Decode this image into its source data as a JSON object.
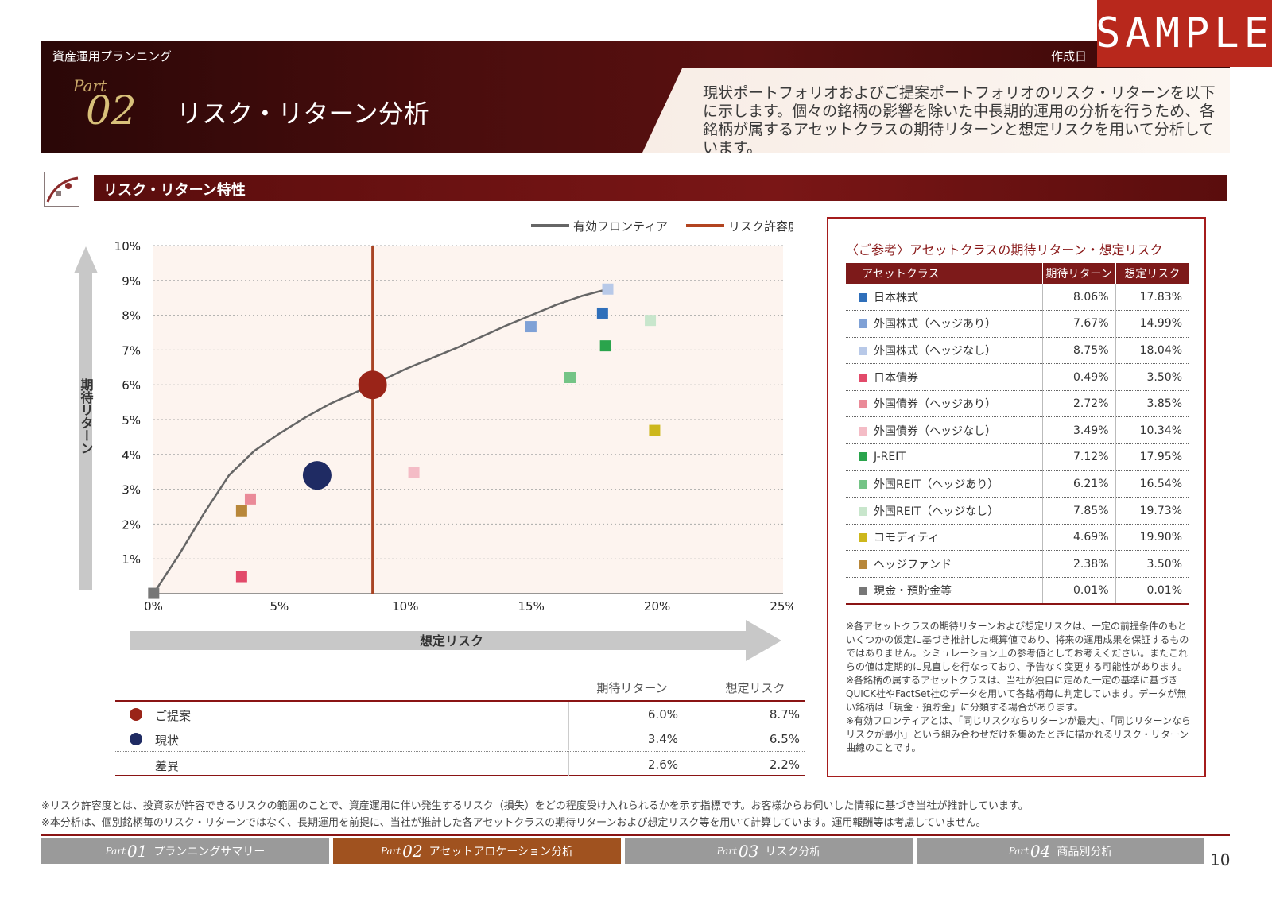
{
  "header": {
    "category": "資産運用プランニング",
    "created_label": "作成日",
    "sample": "SAMPLE",
    "part_word": "Part",
    "part_num": "02",
    "title": "リスク・リターン分析",
    "description": "現状ポートフォリオおよびご提案ポートフォリオのリスク・リターンを以下に示します。個々の銘柄の影響を除いた中長期的運用の分析を行うため、各銘柄が属するアセットクラスの期待リターンと想定リスクを用いて分析しています。"
  },
  "section": {
    "title": "リスク・リターン特性"
  },
  "chart_data": {
    "type": "scatter",
    "xlabel": "想定リスク",
    "ylabel": "期待リターン",
    "xlim": [
      0,
      25
    ],
    "ylim": [
      0,
      10
    ],
    "xticks": [
      "0%",
      "5%",
      "10%",
      "15%",
      "20%",
      "25%"
    ],
    "yticks": [
      "1%",
      "2%",
      "3%",
      "4%",
      "5%",
      "6%",
      "7%",
      "8%",
      "9%",
      "10%"
    ],
    "legend": [
      "有効フロンティア",
      "リスク許容度"
    ],
    "legend_position": "top-right",
    "risk_tolerance_x": 8.7,
    "frontier": [
      [
        0.01,
        0.01
      ],
      [
        1,
        1.1
      ],
      [
        2,
        2.3
      ],
      [
        3,
        3.4
      ],
      [
        4,
        4.1
      ],
      [
        5,
        4.6
      ],
      [
        6,
        5.05
      ],
      [
        7,
        5.45
      ],
      [
        8.7,
        6.0
      ],
      [
        10,
        6.45
      ],
      [
        12,
        7.05
      ],
      [
        14,
        7.7
      ],
      [
        15,
        8.0
      ],
      [
        16,
        8.3
      ],
      [
        17,
        8.55
      ],
      [
        18.04,
        8.75
      ]
    ],
    "proposal": {
      "name": "ご提案",
      "x": 8.7,
      "y": 6.0,
      "color": "#9a2418"
    },
    "current": {
      "name": "現状",
      "x": 6.5,
      "y": 3.4,
      "color": "#1f2b63"
    },
    "assets": [
      {
        "name": "日本株式",
        "x": 17.83,
        "y": 8.06,
        "color": "#2f6fba"
      },
      {
        "name": "外国株式（ヘッジあり）",
        "x": 14.99,
        "y": 7.67,
        "color": "#7fa1d6"
      },
      {
        "name": "外国株式（ヘッジなし）",
        "x": 18.04,
        "y": 8.75,
        "color": "#b8c9e8"
      },
      {
        "name": "日本債券",
        "x": 3.5,
        "y": 0.49,
        "color": "#e24a6a"
      },
      {
        "name": "外国債券（ヘッジあり）",
        "x": 3.85,
        "y": 2.72,
        "color": "#ea8a98"
      },
      {
        "name": "外国債券（ヘッジなし）",
        "x": 10.34,
        "y": 3.49,
        "color": "#f4bcc6"
      },
      {
        "name": "J-REIT",
        "x": 17.95,
        "y": 7.12,
        "color": "#2aa44c"
      },
      {
        "name": "外国REIT（ヘッジあり）",
        "x": 16.54,
        "y": 6.21,
        "color": "#74c486"
      },
      {
        "name": "外国REIT（ヘッジなし）",
        "x": 19.73,
        "y": 7.85,
        "color": "#c8e6cc"
      },
      {
        "name": "コモディティ",
        "x": 19.9,
        "y": 4.69,
        "color": "#cdb71c"
      },
      {
        "name": "ヘッジファンド",
        "x": 3.5,
        "y": 2.38,
        "color": "#b8873a"
      },
      {
        "name": "現金・預貯金等",
        "x": 0.01,
        "y": 0.01,
        "color": "#777777"
      }
    ]
  },
  "comparison": {
    "col_return": "期待リターン",
    "col_risk": "想定リスク",
    "rows": [
      {
        "label": "ご提案",
        "ret": "6.0%",
        "risk": "8.7%"
      },
      {
        "label": "現状",
        "ret": "3.4%",
        "risk": "6.5%"
      },
      {
        "label": "差異",
        "ret": "2.6%",
        "risk": "2.2%"
      }
    ]
  },
  "panel": {
    "title": "〈ご参考〉アセットクラスの期待リターン・想定リスク",
    "headers": [
      "アセットクラス",
      "期待リターン",
      "想定リスク"
    ],
    "rows": [
      {
        "name": "日本株式",
        "ret": "8.06%",
        "risk": "17.83%",
        "color": "#2f6fba"
      },
      {
        "name": "外国株式（ヘッジあり）",
        "ret": "7.67%",
        "risk": "14.99%",
        "color": "#7fa1d6"
      },
      {
        "name": "外国株式（ヘッジなし）",
        "ret": "8.75%",
        "risk": "18.04%",
        "color": "#b8c9e8"
      },
      {
        "name": "日本債券",
        "ret": "0.49%",
        "risk": "3.50%",
        "color": "#e24a6a"
      },
      {
        "name": "外国債券（ヘッジあり）",
        "ret": "2.72%",
        "risk": "3.85%",
        "color": "#ea8a98"
      },
      {
        "name": "外国債券（ヘッジなし）",
        "ret": "3.49%",
        "risk": "10.34%",
        "color": "#f4bcc6"
      },
      {
        "name": "J-REIT",
        "ret": "7.12%",
        "risk": "17.95%",
        "color": "#2aa44c"
      },
      {
        "name": "外国REIT（ヘッジあり）",
        "ret": "6.21%",
        "risk": "16.54%",
        "color": "#74c486"
      },
      {
        "name": "外国REIT（ヘッジなし）",
        "ret": "7.85%",
        "risk": "19.73%",
        "color": "#c8e6cc"
      },
      {
        "name": "コモディティ",
        "ret": "4.69%",
        "risk": "19.90%",
        "color": "#cdb71c"
      },
      {
        "name": "ヘッジファンド",
        "ret": "2.38%",
        "risk": "3.50%",
        "color": "#b8873a"
      },
      {
        "name": "現金・預貯金等",
        "ret": "0.01%",
        "risk": "0.01%",
        "color": "#777777"
      }
    ],
    "note1": "※各アセットクラスの期待リターンおよび想定リスクは、一定の前提条件のもといくつかの仮定に基づき推計した概算値であり、将来の運用成果を保証するものではありません。シミュレーション上の参考値としてお考えください。またこれらの値は定期的に見直しを行なっており、予告なく変更する可能性があります。",
    "note2": "※各銘柄の属するアセットクラスは、当社が独自に定めた一定の基準に基づきQUICK社やFactSet社のデータを用いて各銘柄毎に判定しています。データが無い銘柄は「現金・預貯金」に分類する場合があります。",
    "note3": "※有効フロンティアとは、「同じリスクならリターンが最大」、「同じリターンならリスクが最小」という組み合わせだけを集めたときに描かれるリスク・リターン曲線のことです。"
  },
  "footnotes": {
    "f1": "※リスク許容度とは、投資家が許容できるリスクの範囲のことで、資産運用に伴い発生するリスク（損失）をどの程度受け入れられるかを示す指標です。お客様からお伺いした情報に基づき当社が推計しています。",
    "f2": "※本分析は、個別銘柄毎のリスク・リターンではなく、長期運用を前提に、当社が推計した各アセットクラスの期待リターンおよび想定リスク等を用いて計算しています。運用報酬等は考慮していません。"
  },
  "nav": [
    {
      "word": "Part",
      "num": "01",
      "label": "プランニングサマリー",
      "color": "#9a9a9a"
    },
    {
      "word": "Part",
      "num": "02",
      "label": "アセットアロケーション分析",
      "color": "#a0521f"
    },
    {
      "word": "Part",
      "num": "03",
      "label": "リスク分析",
      "color": "#9a9a9a"
    },
    {
      "word": "Part",
      "num": "04",
      "label": "商品別分析",
      "color": "#9a9a9a"
    }
  ],
  "page_number": "10"
}
